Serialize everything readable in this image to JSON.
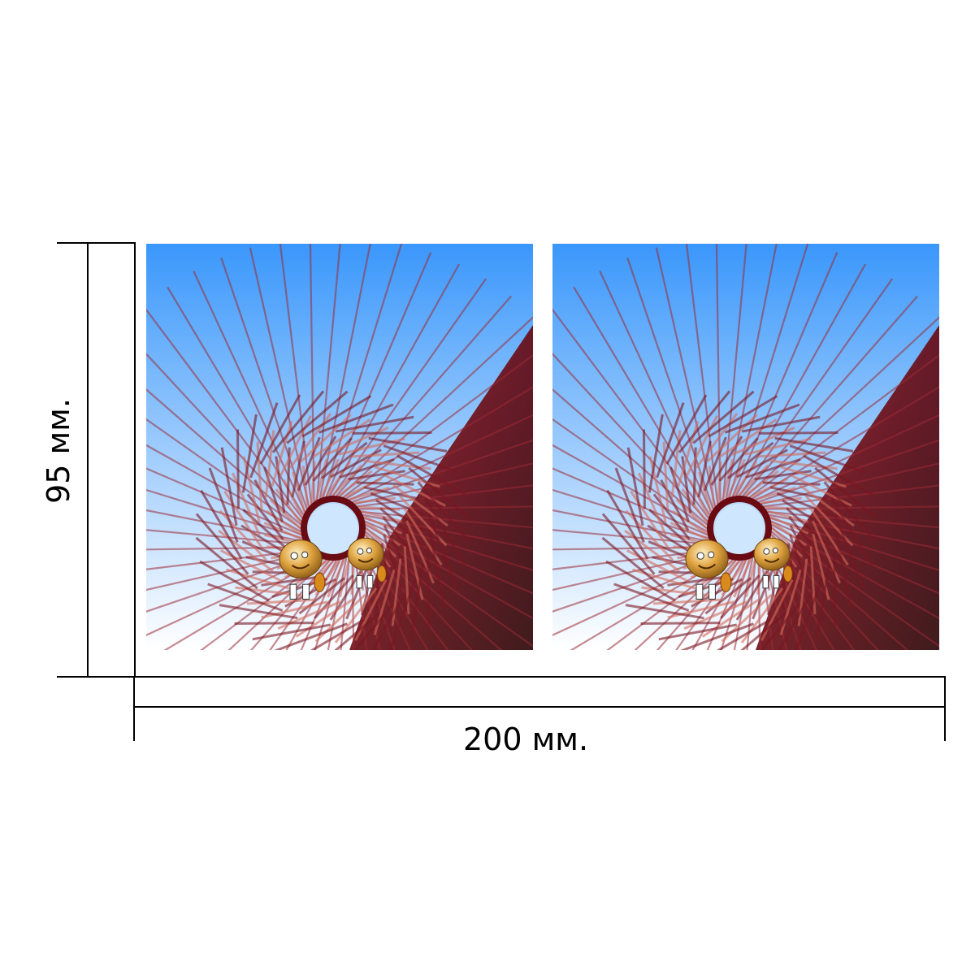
{
  "dimensions": {
    "width_label": "200 мм.",
    "height_label": "95 мм."
  },
  "panels": [
    {
      "name": "left-panel",
      "artwork": "spiral-rays-with-characters"
    },
    {
      "name": "right-panel",
      "artwork": "spiral-rays-with-characters"
    }
  ],
  "colors": {
    "sky_top": "#3a97fb",
    "sky_bottom": "#ffffff",
    "ray": "#9b2a35",
    "dark_band": "#6a0a12",
    "character_gold": "#e0a441",
    "dimension_line": "#000000"
  }
}
